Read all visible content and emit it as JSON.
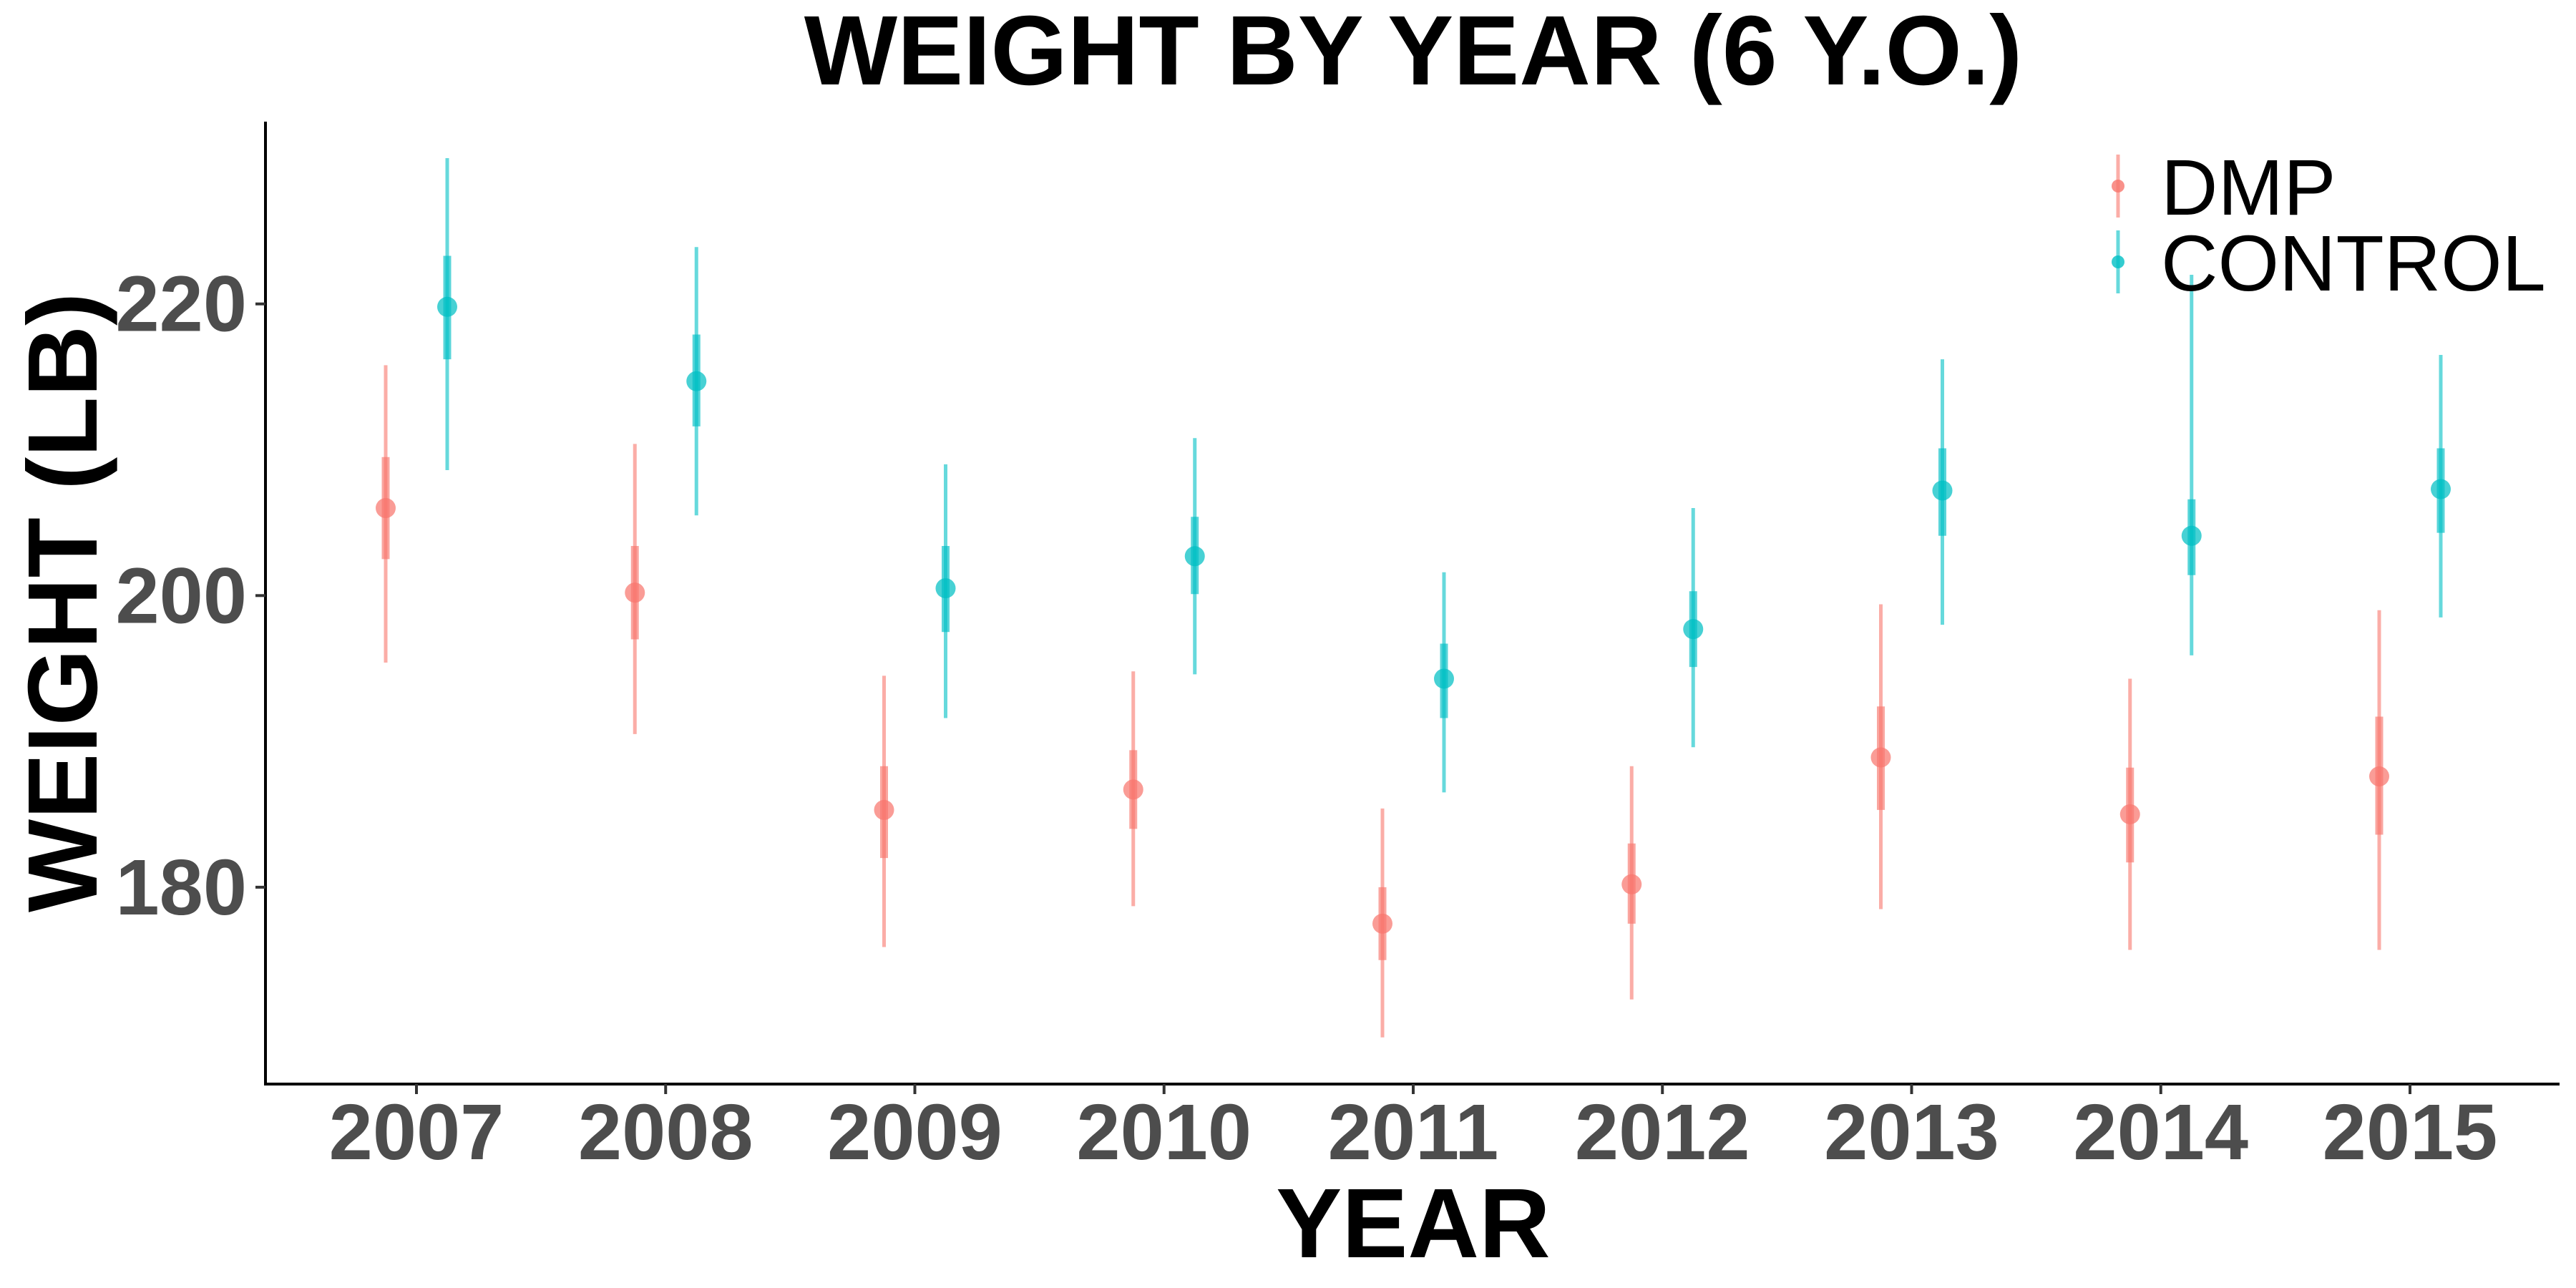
{
  "chart_data": {
    "type": "scatter",
    "title": "WEIGHT BY YEAR (6 Y.O.)",
    "xlabel": "YEAR",
    "ylabel": "WEIGHT (LB)",
    "categories": [
      "2007",
      "2008",
      "2009",
      "2010",
      "2011",
      "2012",
      "2013",
      "2014",
      "2015"
    ],
    "yticks": [
      "180",
      "200",
      "220"
    ],
    "ylim": [
      166.5,
      232.5
    ],
    "grid": false,
    "legend_position": "top-right",
    "series": [
      {
        "name": "DMP",
        "color": "#F8766D",
        "values": [
          206.0,
          200.2,
          185.3,
          186.7,
          177.5,
          180.2,
          188.9,
          185.0,
          187.6
        ],
        "inner_lo": [
          202.5,
          197.0,
          182.0,
          184.0,
          175.0,
          177.5,
          185.3,
          181.7,
          183.6
        ],
        "inner_hi": [
          209.5,
          203.4,
          188.3,
          189.4,
          180.0,
          183.0,
          192.4,
          188.2,
          191.7
        ],
        "outer_lo": [
          195.4,
          190.5,
          175.9,
          178.7,
          169.7,
          172.3,
          178.5,
          175.7,
          175.7
        ],
        "outer_hi": [
          215.8,
          210.4,
          194.5,
          194.8,
          185.4,
          188.3,
          199.4,
          194.3,
          199.0
        ]
      },
      {
        "name": "CONTROL",
        "color": "#00BFC4",
        "values": [
          219.8,
          214.7,
          200.5,
          202.7,
          194.3,
          197.7,
          207.2,
          204.1,
          207.3
        ],
        "inner_lo": [
          216.2,
          211.6,
          197.5,
          200.1,
          191.6,
          195.1,
          204.1,
          201.4,
          204.3
        ],
        "inner_hi": [
          223.3,
          217.9,
          203.4,
          205.4,
          196.7,
          200.3,
          210.1,
          206.6,
          210.1
        ],
        "outer_lo": [
          208.6,
          205.5,
          191.6,
          194.6,
          186.5,
          189.6,
          198.0,
          195.9,
          198.5
        ],
        "outer_hi": [
          230.0,
          223.9,
          209.0,
          210.8,
          201.6,
          206.0,
          216.2,
          222.0,
          216.5
        ]
      }
    ]
  }
}
